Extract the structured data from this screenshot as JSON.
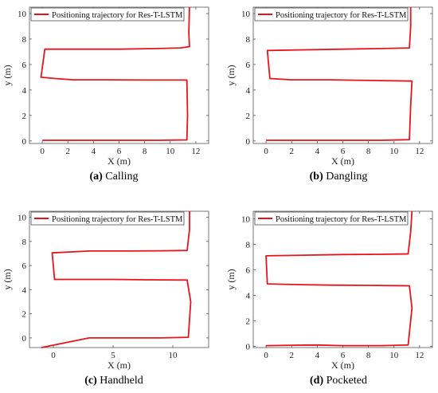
{
  "chart_data": [
    {
      "type": "line",
      "caption_letter": "(a)",
      "caption_text": "Calling",
      "xlabel": "X (m)",
      "ylabel": "y (m)",
      "xlim": [
        -1,
        13
      ],
      "ylim": [
        -0.2,
        10.5
      ],
      "xticks": [
        0,
        2,
        4,
        6,
        8,
        10,
        12
      ],
      "yticks": [
        0,
        2,
        4,
        6,
        8,
        10
      ],
      "grid": false,
      "legend_position": "top-left",
      "series": [
        {
          "name": "Positioning trajectory for  Res-T-LSTM",
          "color": "#e8141c",
          "points": [
            [
              0,
              0.05
            ],
            [
              3,
              0.05
            ],
            [
              6,
              0.05
            ],
            [
              9,
              0.05
            ],
            [
              11.3,
              0.08
            ],
            [
              11.35,
              2
            ],
            [
              11.3,
              4.78
            ],
            [
              8,
              4.78
            ],
            [
              5,
              4.8
            ],
            [
              2.4,
              4.8
            ],
            [
              1,
              4.9
            ],
            [
              -0.1,
              5.0
            ],
            [
              0.2,
              7.2
            ],
            [
              3,
              7.2
            ],
            [
              6,
              7.2
            ],
            [
              9,
              7.25
            ],
            [
              10.8,
              7.3
            ],
            [
              11.5,
              7.4
            ],
            [
              11.45,
              8.5
            ],
            [
              11.5,
              10.5
            ]
          ]
        }
      ]
    },
    {
      "type": "line",
      "caption_letter": "(b)",
      "caption_text": "Dangling",
      "xlabel": "X (m)",
      "ylabel": "y (m)",
      "xlim": [
        -1,
        13
      ],
      "ylim": [
        -0.2,
        10.5
      ],
      "xticks": [
        0,
        2,
        4,
        6,
        8,
        10,
        12
      ],
      "yticks": [
        0,
        2,
        4,
        6,
        8,
        10
      ],
      "grid": false,
      "legend_position": "top-left",
      "series": [
        {
          "name": "Positioning trajectory for  Res-T-LSTM",
          "color": "#e8141c",
          "points": [
            [
              0,
              0.05
            ],
            [
              3,
              0.05
            ],
            [
              6,
              0.05
            ],
            [
              9,
              0.05
            ],
            [
              11.2,
              0.1
            ],
            [
              11.3,
              2.8
            ],
            [
              11.4,
              4.7
            ],
            [
              8,
              4.75
            ],
            [
              5,
              4.8
            ],
            [
              2,
              4.8
            ],
            [
              0.3,
              4.9
            ],
            [
              0.1,
              7.1
            ],
            [
              3,
              7.15
            ],
            [
              6,
              7.2
            ],
            [
              9,
              7.25
            ],
            [
              11.2,
              7.3
            ],
            [
              11.3,
              9
            ],
            [
              11.3,
              10.5
            ]
          ]
        }
      ]
    },
    {
      "type": "line",
      "caption_letter": "(c)",
      "caption_text": "Handheld",
      "xlabel": "X (m)",
      "ylabel": "y (m)",
      "xlim": [
        -2,
        13
      ],
      "ylim": [
        -0.8,
        10.5
      ],
      "xticks": [
        0,
        5,
        10
      ],
      "yticks": [
        0,
        2,
        4,
        6,
        8,
        10
      ],
      "grid": false,
      "legend_position": "top-left",
      "series": [
        {
          "name": "Positioning trajectory for  Res-T-LSTM",
          "color": "#e8141c",
          "points": [
            [
              -1,
              -0.8
            ],
            [
              3,
              0
            ],
            [
              6,
              0
            ],
            [
              9,
              0
            ],
            [
              11.3,
              0.05
            ],
            [
              11.5,
              3
            ],
            [
              11.2,
              4.8
            ],
            [
              8,
              4.82
            ],
            [
              5,
              4.85
            ],
            [
              2,
              4.85
            ],
            [
              0.1,
              4.85
            ],
            [
              -0.1,
              7.05
            ],
            [
              3,
              7.2
            ],
            [
              6,
              7.2
            ],
            [
              9,
              7.22
            ],
            [
              11.2,
              7.25
            ],
            [
              11.4,
              9
            ],
            [
              11.4,
              10.5
            ]
          ]
        }
      ]
    },
    {
      "type": "line",
      "caption_letter": "(d)",
      "caption_text": "Pocketed",
      "xlabel": "X (m)",
      "ylabel": "y (m)",
      "xlim": [
        -1,
        13
      ],
      "ylim": [
        -0.1,
        10.6
      ],
      "xticks": [
        0,
        2,
        4,
        6,
        8,
        10,
        12
      ],
      "yticks": [
        0,
        2,
        4,
        6,
        8,
        10
      ],
      "grid": false,
      "legend_position": "top-left",
      "series": [
        {
          "name": "Positioning trajectory for  Res-T-LSTM",
          "color": "#e8141c",
          "points": [
            [
              0,
              0.05
            ],
            [
              2,
              0.08
            ],
            [
              4,
              0.1
            ],
            [
              6,
              0.05
            ],
            [
              9,
              0.05
            ],
            [
              11.1,
              0.1
            ],
            [
              11.4,
              3
            ],
            [
              11.2,
              4.75
            ],
            [
              8,
              4.78
            ],
            [
              5,
              4.8
            ],
            [
              2,
              4.85
            ],
            [
              0.1,
              4.9
            ],
            [
              0,
              7.1
            ],
            [
              3,
              7.15
            ],
            [
              6,
              7.2
            ],
            [
              9,
              7.22
            ],
            [
              11.1,
              7.25
            ],
            [
              11.3,
              9
            ],
            [
              11.4,
              10.6
            ]
          ]
        }
      ]
    }
  ]
}
